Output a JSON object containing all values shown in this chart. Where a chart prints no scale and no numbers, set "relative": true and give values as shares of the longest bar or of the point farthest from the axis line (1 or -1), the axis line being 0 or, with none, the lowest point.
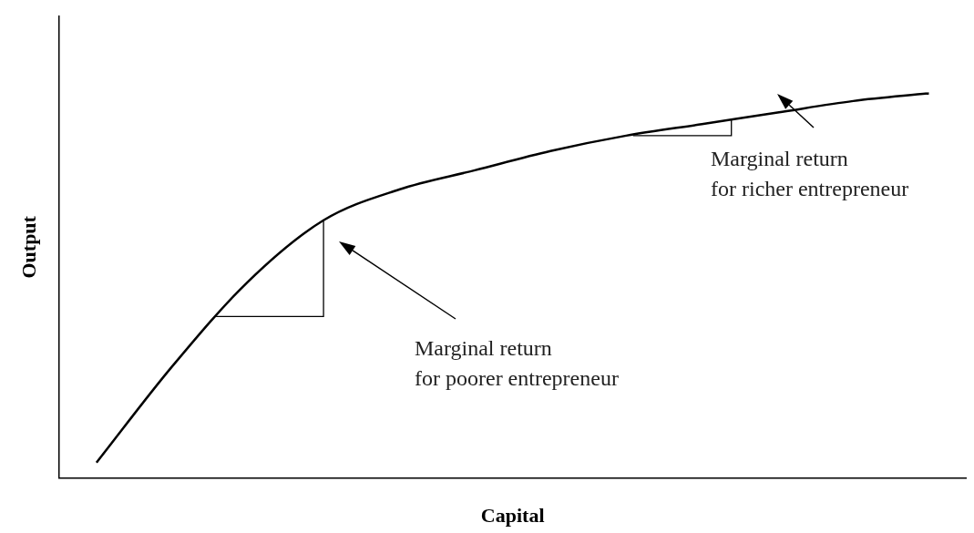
{
  "chart_data": {
    "type": "line",
    "relative": true,
    "xlabel": "Capital",
    "ylabel": "Output",
    "color": "#000000",
    "marker": "none",
    "grid": false,
    "legend": false,
    "tick_labels": false,
    "categories": [
      null,
      null,
      null,
      null,
      null,
      null,
      null,
      null,
      null,
      null,
      null,
      null
    ],
    "values": [
      0.04,
      0.29,
      0.51,
      0.67,
      0.75,
      0.8,
      0.85,
      0.89,
      0.92,
      0.95,
      0.98,
      1
    ],
    "annotations": [
      "Marginal return\nfor poorer entrepreneur",
      "Marginal return\nfor richer entrepreneur"
    ]
  }
}
